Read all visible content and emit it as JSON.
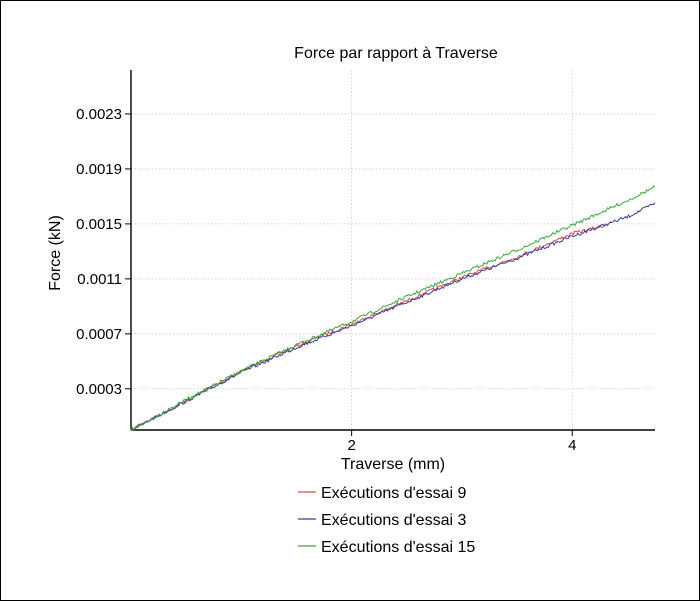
{
  "chart_data": {
    "type": "line",
    "title": "Force par rapport à Traverse",
    "xlabel": "Traverse (mm)",
    "ylabel": "Force (kN)",
    "xlim": [
      0.0,
      4.75
    ],
    "ylim": [
      0.0,
      0.00262
    ],
    "x_ticks": [
      2,
      4
    ],
    "x_tick_labels": [
      "2",
      "4"
    ],
    "y_ticks": [
      0.0003,
      0.0007,
      0.0011,
      0.0015,
      0.0019,
      0.0023
    ],
    "y_tick_labels": [
      "0.0003",
      "0.0007",
      "0.0011",
      "0.0015",
      "0.0019",
      "0.0023"
    ],
    "grid": true,
    "legend_position": "bottom-center",
    "series": [
      {
        "name": "Exécutions d'essai 9",
        "color": "#d94a4a",
        "x": [
          0.0,
          0.5,
          1.0,
          1.5,
          2.0,
          2.5,
          3.0,
          3.5,
          4.0,
          4.3
        ],
        "y": [
          0.0,
          0.00021,
          0.00043,
          0.00061,
          0.00077,
          0.00094,
          0.00111,
          0.00126,
          0.00143,
          0.00149
        ]
      },
      {
        "name": "Exécutions d'essai 3",
        "color": "#3b3b9e",
        "x": [
          0.0,
          0.5,
          1.0,
          1.5,
          2.0,
          2.5,
          3.0,
          3.5,
          4.0,
          4.5,
          4.75
        ],
        "y": [
          0.0,
          0.00021,
          0.00042,
          0.0006,
          0.00076,
          0.00093,
          0.0011,
          0.00125,
          0.00141,
          0.00155,
          0.00165
        ]
      },
      {
        "name": "Exécutions d'essai 15",
        "color": "#3aa83a",
        "x": [
          0.0,
          0.5,
          1.0,
          1.5,
          2.0,
          2.5,
          3.0,
          3.5,
          4.0,
          4.5,
          4.75
        ],
        "y": [
          0.0,
          0.00022,
          0.00043,
          0.00062,
          0.00079,
          0.00097,
          0.00114,
          0.00131,
          0.00149,
          0.00167,
          0.00177
        ]
      }
    ]
  }
}
